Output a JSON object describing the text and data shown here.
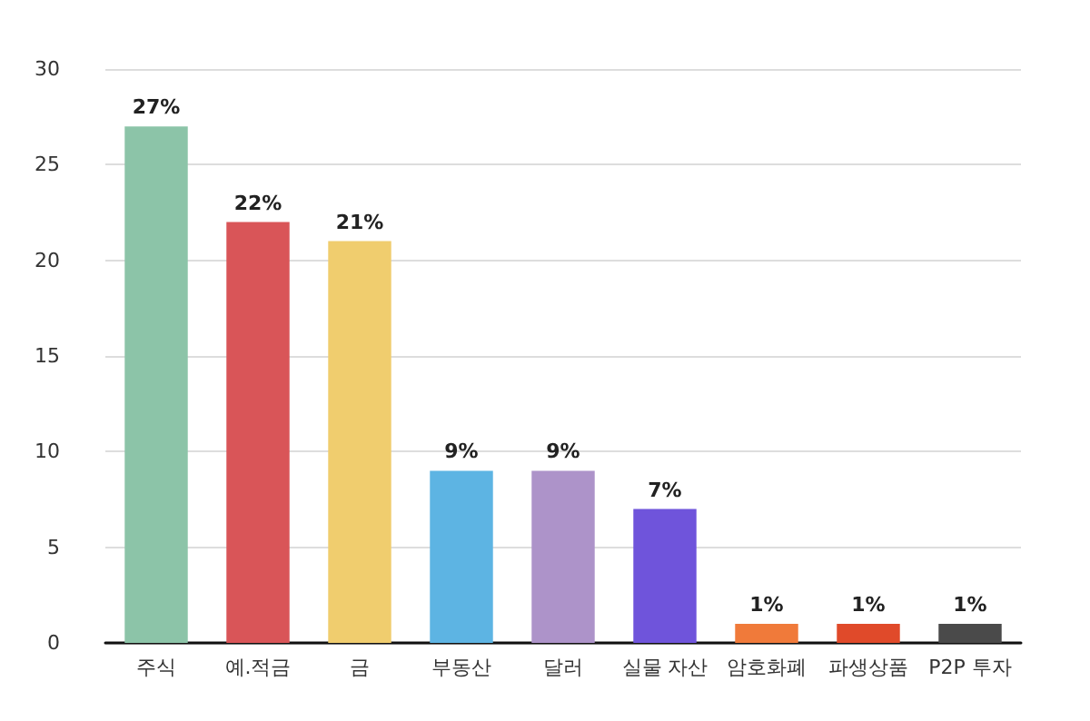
{
  "chart_data": {
    "type": "bar",
    "categories": [
      "주식",
      "예.적금",
      "금",
      "부동산",
      "달러",
      "실물 자산",
      "암호화폐",
      "파생상품",
      "P2P 투자"
    ],
    "values": [
      27,
      22,
      21,
      9,
      9,
      7,
      1,
      1,
      1
    ],
    "colors": [
      "#8cc4a8",
      "#d95558",
      "#f0cd6e",
      "#5db4e3",
      "#ad93c9",
      "#6f54db",
      "#f07a3a",
      "#e04a2a",
      "#4a4a4a"
    ],
    "value_labels": [
      "27%",
      "22%",
      "21%",
      "9%",
      "9%",
      "7%",
      "1%",
      "1%",
      "1%"
    ],
    "ylim": [
      0,
      30
    ],
    "yticks": [
      0,
      5,
      10,
      15,
      20,
      25,
      30
    ],
    "grid": "y"
  }
}
